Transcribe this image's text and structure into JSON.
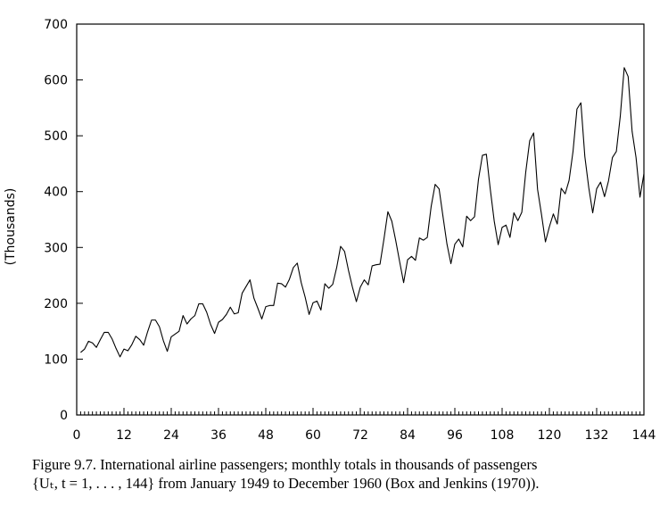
{
  "chart_data": {
    "type": "line",
    "title": "",
    "xlabel": "",
    "ylabel": "(Thousands)",
    "xlim": [
      0,
      144
    ],
    "ylim": [
      0,
      700
    ],
    "x_ticks": [
      0,
      12,
      24,
      36,
      48,
      60,
      72,
      84,
      96,
      108,
      120,
      132,
      144
    ],
    "y_ticks": [
      0,
      100,
      200,
      300,
      400,
      500,
      600,
      700
    ],
    "grid": false,
    "series": [
      {
        "values": [
          112,
          118,
          132,
          129,
          121,
          135,
          148,
          148,
          136,
          119,
          104,
          118,
          115,
          126,
          141,
          135,
          125,
          149,
          170,
          170,
          158,
          133,
          114,
          140,
          145,
          150,
          178,
          163,
          172,
          178,
          199,
          199,
          184,
          162,
          146,
          166,
          171,
          180,
          193,
          181,
          183,
          218,
          230,
          242,
          209,
          191,
          172,
          194,
          196,
          196,
          236,
          235,
          229,
          243,
          264,
          272,
          237,
          211,
          180,
          201,
          204,
          188,
          235,
          227,
          234,
          264,
          302,
          293,
          259,
          229,
          203,
          229,
          242,
          233,
          267,
          269,
          270,
          315,
          364,
          347,
          312,
          274,
          237,
          278,
          284,
          277,
          317,
          313,
          318,
          374,
          413,
          405,
          355,
          306,
          271,
          306,
          315,
          301,
          356,
          348,
          355,
          422,
          465,
          467,
          404,
          347,
          305,
          336,
          340,
          318,
          362,
          348,
          363,
          435,
          491,
          505,
          404,
          359,
          310,
          337,
          360,
          342,
          406,
          396,
          420,
          472,
          548,
          559,
          463,
          407,
          362,
          405,
          417,
          391,
          419,
          461,
          472,
          535,
          622,
          606,
          508,
          461,
          390,
          432
        ]
      }
    ]
  },
  "caption": {
    "line1": "Figure 9.7.  International airline passengers; monthly totals in thousands of passengers",
    "line2": "{Uₜ, t = 1, . . . , 144} from January 1949 to December 1960 (Box and Jenkins (1970))."
  }
}
